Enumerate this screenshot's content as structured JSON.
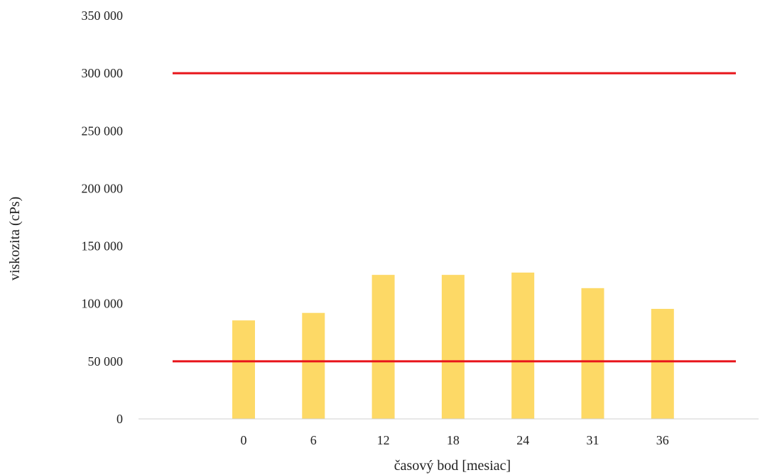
{
  "chart_data": {
    "type": "bar",
    "title": "",
    "xlabel": "časový bod [mesiac]",
    "ylabel": "viskozita (cPs)",
    "categories": [
      "0",
      "6",
      "12",
      "18",
      "24",
      "31",
      "36"
    ],
    "values": [
      85500,
      92000,
      125000,
      125000,
      127000,
      113500,
      95500
    ],
    "ylim": [
      0,
      350000
    ],
    "yticks": [
      0,
      50000,
      100000,
      150000,
      200000,
      250000,
      300000,
      350000
    ],
    "ytick_labels": [
      "0",
      "50 000",
      "100 000",
      "150 000",
      "200 000",
      "250 000",
      "300 000",
      "350 000"
    ],
    "reference_lines": [
      {
        "value": 300000,
        "color": "#e8141a"
      },
      {
        "value": 50000,
        "color": "#e8141a"
      }
    ],
    "bar_color": "#fdd966",
    "grid": false,
    "legend": "none"
  }
}
